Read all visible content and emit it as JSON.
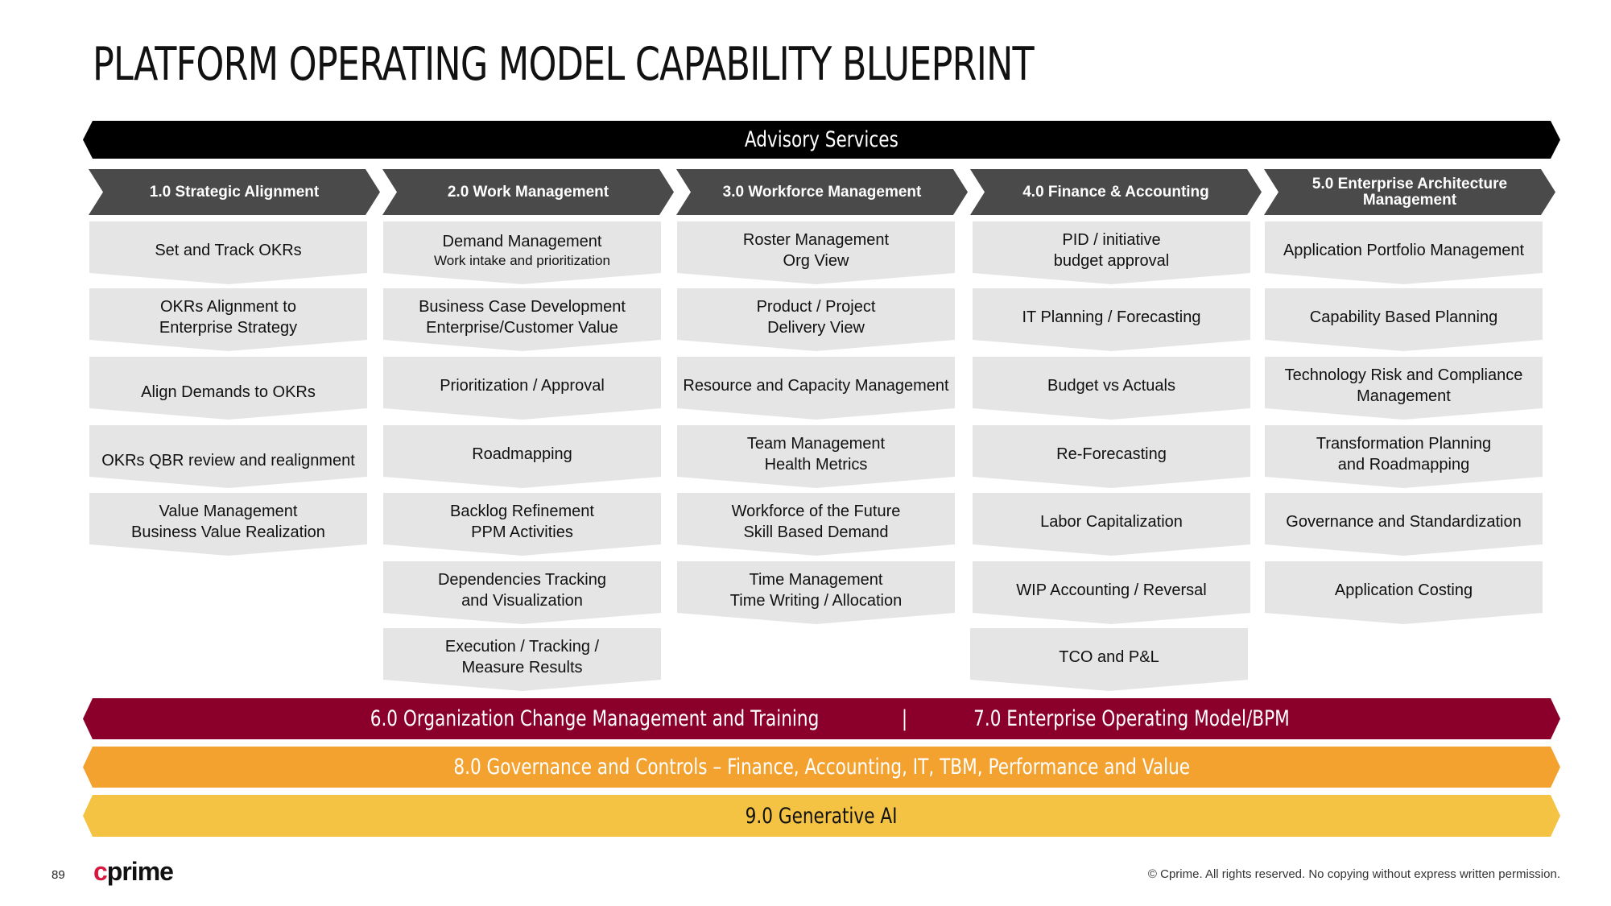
{
  "title": "PLATFORM OPERATING MODEL CAPABILITY BLUEPRINT",
  "bands": {
    "advisory": "Advisory Services",
    "change_left": "6.0 Organization Change Management and Training",
    "change_sep": "|",
    "change_right": "7.0 Enterprise Operating Model/BPM",
    "governance": "8.0 Governance and Controls – Finance, Accounting, IT, TBM, Performance and Value",
    "ai": "9.0 Generative AI"
  },
  "columns": [
    {
      "header": "1.0 Strategic Alignment",
      "cells": [
        {
          "l1": "Set and Track OKRs",
          "l2": ""
        },
        {
          "l1": "OKRs Alignment to",
          "l2": "Enterprise Strategy"
        },
        {
          "l1": "Align Demands to OKRs",
          "l2": ""
        },
        {
          "l1": "OKRs QBR review and realignment",
          "l2": ""
        },
        {
          "l1": "Value Management",
          "l2": "Business Value Realization"
        }
      ]
    },
    {
      "header": "2.0  Work Management",
      "cells": [
        {
          "l1": "Demand Management",
          "l2": "Work intake and prioritization"
        },
        {
          "l1": "Business Case Development",
          "l2": "Enterprise/Customer Value"
        },
        {
          "l1": "Prioritization / Approval",
          "l2": ""
        },
        {
          "l1": "Roadmapping",
          "l2": ""
        },
        {
          "l1": "Backlog Refinement",
          "l2": "PPM Activities"
        },
        {
          "l1": "Dependencies Tracking",
          "l2": "and Visualization"
        },
        {
          "l1": "Execution / Tracking /",
          "l2": "Measure Results"
        }
      ]
    },
    {
      "header": "3.0 Workforce Management",
      "cells": [
        {
          "l1": "Roster Management",
          "l2": "Org View"
        },
        {
          "l1": "Product / Project",
          "l2": "Delivery View"
        },
        {
          "l1": "Resource and Capacity Management",
          "l2": ""
        },
        {
          "l1": "Team Management",
          "l2": "Health Metrics"
        },
        {
          "l1": "Workforce of the Future",
          "l2": "Skill Based Demand"
        },
        {
          "l1": "Time Management",
          "l2": "Time Writing / Allocation"
        }
      ]
    },
    {
      "header": "4.0 Finance & Accounting",
      "cells": [
        {
          "l1": "PID / initiative",
          "l2": "budget approval"
        },
        {
          "l1": "IT Planning  /  Forecasting",
          "l2": ""
        },
        {
          "l1": "Budget vs Actuals",
          "l2": ""
        },
        {
          "l1": "Re-Forecasting",
          "l2": ""
        },
        {
          "l1": "Labor Capitalization",
          "l2": ""
        },
        {
          "l1": "WIP Accounting / Reversal",
          "l2": ""
        },
        {
          "l1": "TCO and P&L",
          "l2": ""
        }
      ]
    },
    {
      "header": "5.0 Enterprise Architecture Management",
      "cells": [
        {
          "l1": "Application Portfolio Management",
          "l2": ""
        },
        {
          "l1": "Capability Based Planning",
          "l2": ""
        },
        {
          "l1": "Technology Risk and Compliance",
          "l2": "Management"
        },
        {
          "l1": "Transformation Planning",
          "l2": "and Roadmapping"
        },
        {
          "l1": "Governance and Standardization",
          "l2": ""
        },
        {
          "l1": "Application Costing",
          "l2": ""
        }
      ]
    }
  ],
  "footer": {
    "page_number": "89",
    "logo": "cprime",
    "copyright": "© Cprime. All rights reserved. No copying without express written permission."
  }
}
